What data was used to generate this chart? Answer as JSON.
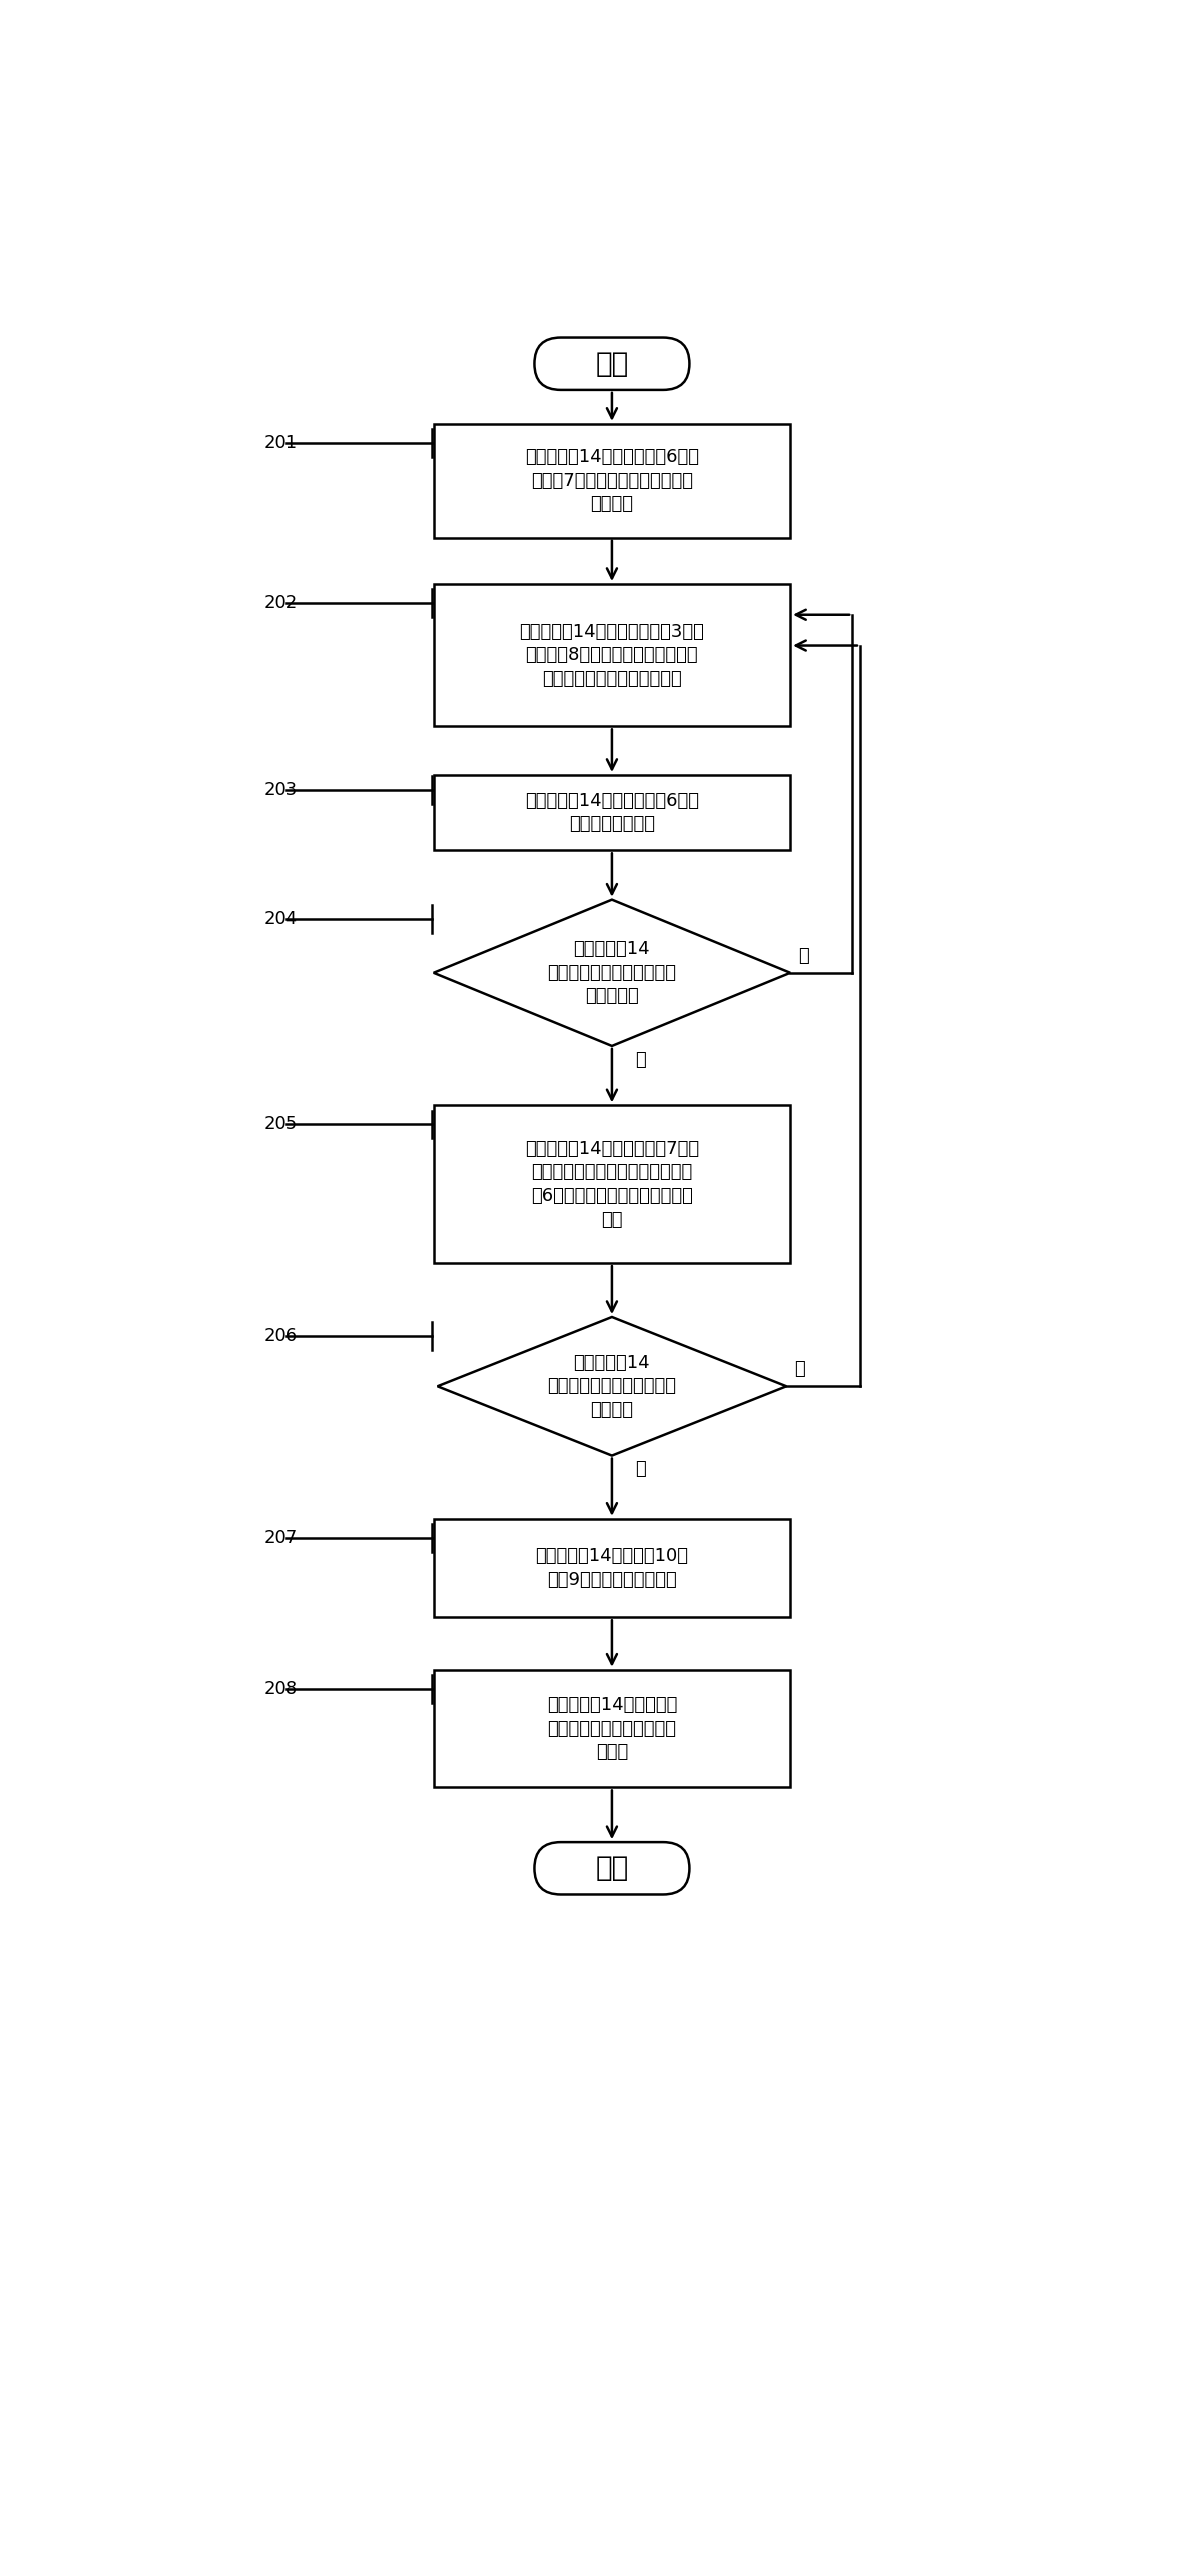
{
  "bg_color": "#ffffff",
  "start_end_text": [
    "开始",
    "结束"
  ],
  "step_texts": [
    "微型计算机14控制第一电机6和第\n二电机7，将激光光束调整至画面\n的右上角",
    "微型计算机14控制激光发射器3和激\n光接收器8进行测距，并计算空间坐\n标，并将该坐标追加到点云中",
    "微型计算机14控制第一电机6逆时\n针转动一定的角度",
    "微型计算机14\n判断激光光束是否到达画面\n的最下端？",
    "微型计算机14控制第二电机7逆时\n针转动一定的角度，再控制第一电\n机6，将激光光束调整至画面的最\n上端",
    "微型计算机14\n判断激光光束是否到达画面\n的最左端",
    "微型计算机14控制光源10和\n相机9对被摄物体进行拍摄",
    "微型计算机14生成立体图\n像，并将其存储在自身的存\n储器中"
  ],
  "labels": [
    "201",
    "202",
    "203",
    "204",
    "205",
    "206",
    "207",
    "208"
  ],
  "yes_label": "是",
  "no_label": "否",
  "lw": 1.8
}
